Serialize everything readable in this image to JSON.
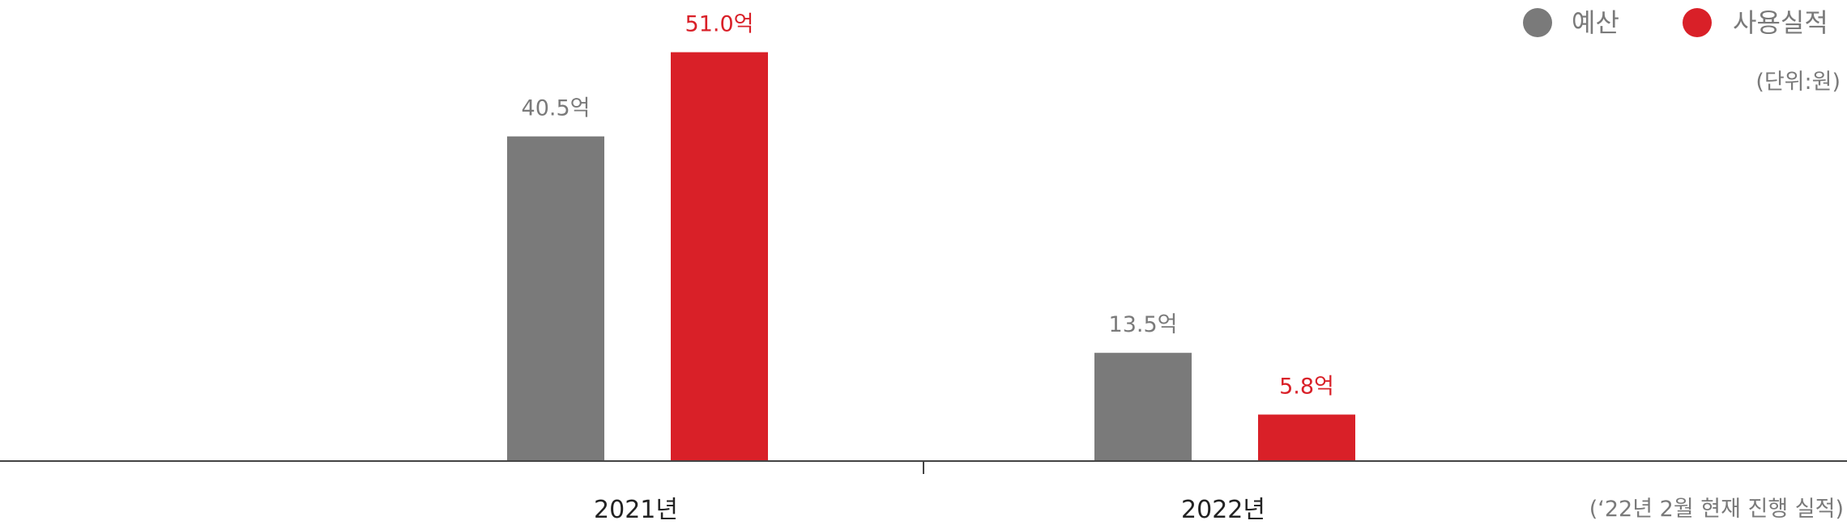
{
  "chart_data": {
    "type": "bar",
    "categories": [
      "2021년",
      "2022년"
    ],
    "series": [
      {
        "name": "예산",
        "values": [
          40.5,
          13.5
        ],
        "labels": [
          "40.5억",
          "13.5억"
        ],
        "color": "#7a7a7a"
      },
      {
        "name": "사용실적",
        "values": [
          51.0,
          5.8
        ],
        "labels": [
          "51.0억",
          "5.8억"
        ],
        "color": "#d92028"
      }
    ],
    "unit_note": "(단위:원)",
    "footnote": "(‘22년 2월 현재 진행 실적)",
    "ylim": [
      0,
      56
    ],
    "legend_position": "top-right",
    "grid": false
  }
}
